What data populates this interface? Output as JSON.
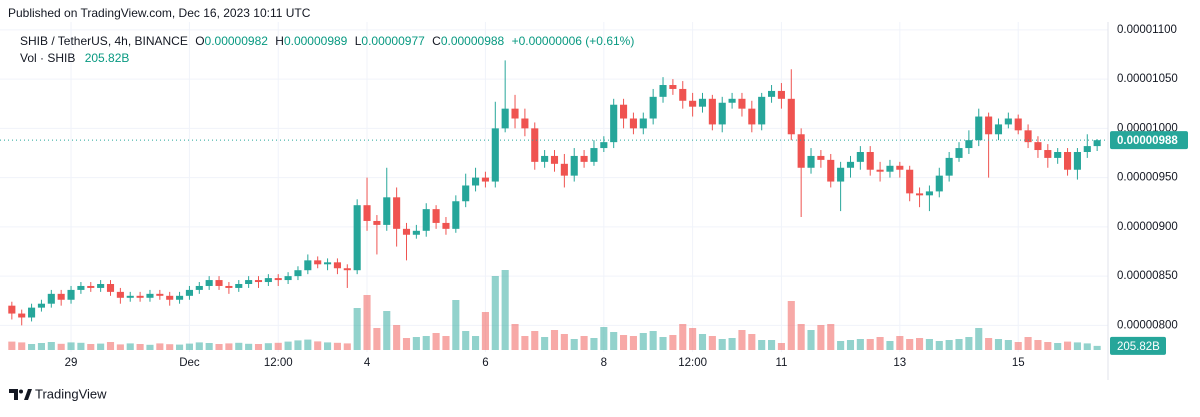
{
  "header": {
    "published": "Published on TradingView.com, Dec 16, 2023 10:11 UTC"
  },
  "chart_data": {
    "type": "candlestick",
    "legend": {
      "symbol": "SHIB / TetherUS, 4h, BINANCE",
      "open": {
        "label": "O",
        "value": "0.00000982"
      },
      "high": {
        "label": "H",
        "value": "0.00000989"
      },
      "low": {
        "label": "L",
        "value": "0.00000977"
      },
      "close": {
        "label": "C",
        "value": "0.00000988"
      },
      "change": "+0.00000006 (+0.61%)",
      "volume_title": "Vol · SHIB",
      "volume_value": "205.82B"
    },
    "open": [
      8.2e-06,
      8.12e-06,
      8.08e-06,
      8.18e-06,
      8.22e-06,
      8.32e-06,
      8.26e-06,
      8.36e-06,
      8.4e-06,
      8.38e-06,
      8.42e-06,
      8.34e-06,
      8.28e-06,
      8.3e-06,
      8.28e-06,
      8.32e-06,
      8.3e-06,
      8.26e-06,
      8.3e-06,
      8.36e-06,
      8.4e-06,
      8.46e-06,
      8.4e-06,
      8.38e-06,
      8.42e-06,
      8.46e-06,
      8.44e-06,
      8.48e-06,
      8.46e-06,
      8.5e-06,
      8.56e-06,
      8.66e-06,
      8.62e-06,
      8.64e-06,
      8.58e-06,
      8.56e-06,
      9.22e-06,
      9.06e-06,
      9.02e-06,
      9.3e-06,
      8.98e-06,
      8.92e-06,
      8.96e-06,
      9.18e-06,
      9.04e-06,
      8.98e-06,
      9.26e-06,
      9.42e-06,
      9.5e-06,
      9.46e-06,
      1e-05,
      1.02e-05,
      1.01e-05,
      1e-05,
      9.66e-06,
      9.72e-06,
      9.64e-06,
      9.52e-06,
      9.72e-06,
      9.66e-06,
      9.8e-06,
      9.86e-06,
      1.024e-05,
      1.01e-05,
      1e-05,
      1.01e-05,
      1.032e-05,
      1.044e-05,
      1.04e-05,
      1.028e-05,
      1.022e-05,
      1.03e-05,
      1.004e-05,
      1.026e-05,
      1.03e-05,
      1.02e-05,
      1.004e-05,
      1.032e-05,
      1.038e-05,
      1.03e-05,
      9.94e-06,
      9.6e-06,
      9.72e-06,
      9.68e-06,
      9.46e-06,
      9.6e-06,
      9.66e-06,
      9.76e-06,
      9.58e-06,
      9.56e-06,
      9.62e-06,
      9.58e-06,
      9.34e-06,
      9.32e-06,
      9.36e-06,
      9.52e-06,
      9.7e-06,
      9.8e-06,
      9.88e-06,
      1.012e-05,
      9.94e-06,
      1.004e-05,
      1.01e-05,
      9.98e-06,
      9.86e-06,
      9.78e-06,
      9.7e-06,
      9.76e-06,
      9.58e-06,
      9.76e-06,
      9.82e-06
    ],
    "high": [
      8.24e-06,
      8.16e-06,
      8.22e-06,
      8.26e-06,
      8.36e-06,
      8.36e-06,
      8.4e-06,
      8.44e-06,
      8.44e-06,
      8.46e-06,
      8.46e-06,
      8.38e-06,
      8.34e-06,
      8.34e-06,
      8.36e-06,
      8.36e-06,
      8.34e-06,
      8.34e-06,
      8.4e-06,
      8.44e-06,
      8.5e-06,
      8.5e-06,
      8.44e-06,
      8.46e-06,
      8.5e-06,
      8.5e-06,
      8.52e-06,
      8.52e-06,
      8.54e-06,
      8.6e-06,
      8.72e-06,
      8.7e-06,
      8.68e-06,
      8.68e-06,
      8.62e-06,
      9.28e-06,
      9.5e-06,
      9.12e-06,
      9.6e-06,
      9.4e-06,
      9.04e-06,
      9.02e-06,
      9.24e-06,
      9.22e-06,
      9.1e-06,
      9.32e-06,
      9.54e-06,
      9.6e-06,
      9.56e-06,
      1.027e-05,
      1.069e-05,
      1.034e-05,
      1.02e-05,
      1.006e-05,
      9.78e-06,
      9.78e-06,
      9.74e-06,
      9.8e-06,
      9.78e-06,
      9.88e-06,
      9.92e-06,
      1.03e-05,
      1.03e-05,
      1.016e-05,
      1.016e-05,
      1.04e-05,
      1.052e-05,
      1.05e-05,
      1.048e-05,
      1.036e-05,
      1.036e-05,
      1.034e-05,
      1.032e-05,
      1.036e-05,
      1.036e-05,
      1.028e-05,
      1.036e-05,
      1.044e-05,
      1.046e-05,
      1.06e-05,
      1e-05,
      9.8e-06,
      9.78e-06,
      9.74e-06,
      9.66e-06,
      9.72e-06,
      9.82e-06,
      9.82e-06,
      9.66e-06,
      9.68e-06,
      9.66e-06,
      9.62e-06,
      9.4e-06,
      9.42e-06,
      9.6e-06,
      9.76e-06,
      9.86e-06,
      9.98e-06,
      1.02e-05,
      1.016e-05,
      1.01e-05,
      1.016e-05,
      1.014e-05,
      1.004e-05,
      9.92e-06,
      9.84e-06,
      9.8e-06,
      9.8e-06,
      9.8e-06,
      9.94e-06,
      9.89e-06
    ],
    "low": [
      8.06e-06,
      8e-06,
      8.04e-06,
      8.14e-06,
      8.18e-06,
      8.2e-06,
      8.22e-06,
      8.32e-06,
      8.34e-06,
      8.34e-06,
      8.3e-06,
      8.22e-06,
      8.24e-06,
      8.24e-06,
      8.24e-06,
      8.26e-06,
      8.2e-06,
      8.22e-06,
      8.26e-06,
      8.32e-06,
      8.36e-06,
      8.36e-06,
      8.32e-06,
      8.34e-06,
      8.38e-06,
      8.38e-06,
      8.4e-06,
      8.4e-06,
      8.42e-06,
      8.46e-06,
      8.52e-06,
      8.58e-06,
      8.56e-06,
      8.52e-06,
      8.38e-06,
      8.52e-06,
      8.96e-06,
      8.72e-06,
      8.96e-06,
      8.8e-06,
      8.66e-06,
      8.88e-06,
      8.9e-06,
      8.98e-06,
      8.92e-06,
      8.94e-06,
      9.2e-06,
      9.36e-06,
      9.4e-06,
      9.4e-06,
      9.96e-06,
      1e-05,
      9.92e-06,
      9.58e-06,
      9.6e-06,
      9.56e-06,
      9.4e-06,
      9.46e-06,
      9.6e-06,
      9.62e-06,
      9.76e-06,
      9.8e-06,
      1e-05,
      9.94e-06,
      9.94e-06,
      1.004e-05,
      1.026e-05,
      1.034e-05,
      1.02e-05,
      1.012e-05,
      1.016e-05,
      9.98e-06,
      9.96e-06,
      1.02e-05,
      1.012e-05,
      9.96e-06,
      9.98e-06,
      1.026e-05,
      1.02e-05,
      9.88e-06,
      9.1e-06,
      9.54e-06,
      9.6e-06,
      9.4e-06,
      9.16e-06,
      9.5e-06,
      9.58e-06,
      9.52e-06,
      9.46e-06,
      9.5e-06,
      9.5e-06,
      9.26e-06,
      9.2e-06,
      9.16e-06,
      9.3e-06,
      9.46e-06,
      9.66e-06,
      9.74e-06,
      9.82e-06,
      9.5e-06,
      9.88e-06,
      1e-05,
      9.94e-06,
      9.8e-06,
      9.7e-06,
      9.6e-06,
      9.64e-06,
      9.52e-06,
      9.48e-06,
      9.7e-06,
      9.77e-06
    ],
    "close": [
      8.12e-06,
      8.08e-06,
      8.18e-06,
      8.22e-06,
      8.32e-06,
      8.26e-06,
      8.36e-06,
      8.4e-06,
      8.38e-06,
      8.42e-06,
      8.34e-06,
      8.28e-06,
      8.3e-06,
      8.28e-06,
      8.32e-06,
      8.3e-06,
      8.26e-06,
      8.3e-06,
      8.36e-06,
      8.4e-06,
      8.46e-06,
      8.4e-06,
      8.38e-06,
      8.42e-06,
      8.46e-06,
      8.44e-06,
      8.48e-06,
      8.46e-06,
      8.5e-06,
      8.56e-06,
      8.66e-06,
      8.62e-06,
      8.64e-06,
      8.58e-06,
      8.56e-06,
      9.22e-06,
      9.06e-06,
      9.02e-06,
      9.3e-06,
      8.98e-06,
      8.92e-06,
      8.96e-06,
      9.18e-06,
      9.04e-06,
      8.98e-06,
      9.26e-06,
      9.42e-06,
      9.5e-06,
      9.46e-06,
      1e-05,
      1.02e-05,
      1.01e-05,
      1e-05,
      9.66e-06,
      9.72e-06,
      9.64e-06,
      9.52e-06,
      9.72e-06,
      9.66e-06,
      9.8e-06,
      9.86e-06,
      1.024e-05,
      1.01e-05,
      1e-05,
      1.01e-05,
      1.032e-05,
      1.044e-05,
      1.04e-05,
      1.028e-05,
      1.022e-05,
      1.03e-05,
      1.004e-05,
      1.026e-05,
      1.03e-05,
      1.02e-05,
      1.004e-05,
      1.032e-05,
      1.038e-05,
      1.03e-05,
      9.94e-06,
      9.6e-06,
      9.72e-06,
      9.68e-06,
      9.46e-06,
      9.6e-06,
      9.66e-06,
      9.76e-06,
      9.58e-06,
      9.56e-06,
      9.62e-06,
      9.58e-06,
      9.34e-06,
      9.32e-06,
      9.36e-06,
      9.52e-06,
      9.7e-06,
      9.8e-06,
      9.88e-06,
      1.012e-05,
      9.94e-06,
      1.004e-05,
      1.01e-05,
      9.98e-06,
      9.86e-06,
      9.78e-06,
      9.7e-06,
      9.76e-06,
      9.58e-06,
      9.76e-06,
      9.82e-06,
      9.88e-06
    ],
    "volume": [
      420,
      380,
      300,
      350,
      400,
      310,
      380,
      360,
      300,
      320,
      400,
      280,
      330,
      300,
      260,
      330,
      290,
      270,
      320,
      380,
      350,
      300,
      330,
      360,
      310,
      300,
      340,
      360,
      420,
      480,
      520,
      430,
      380,
      360,
      330,
      2100,
      2750,
      1100,
      1950,
      1250,
      600,
      650,
      700,
      850,
      700,
      2500,
      950,
      700,
      1900,
      3700,
      4000,
      1300,
      700,
      950,
      650,
      1000,
      800,
      550,
      700,
      600,
      1150,
      900,
      750,
      700,
      850,
      950,
      650,
      750,
      1300,
      1100,
      800,
      700,
      550,
      600,
      1000,
      800,
      500,
      500,
      350,
      2450,
      1300,
      1000,
      1250,
      1300,
      450,
      500,
      550,
      550,
      650,
      450,
      700,
      550,
      600,
      550,
      450,
      500,
      550,
      650,
      1100,
      600,
      550,
      500,
      400,
      650,
      500,
      400,
      350,
      420,
      380,
      330,
      205.82
    ],
    "colors": {
      "up": "#26a69a",
      "down": "#ef5350"
    },
    "xlim": [
      -1.2,
      111.1
    ],
    "xticks": [
      {
        "value": 6,
        "label": "29"
      },
      {
        "value": 18,
        "label": "Dec"
      },
      {
        "value": 27,
        "label": "12:00"
      },
      {
        "value": 36,
        "label": "4"
      },
      {
        "value": 48,
        "label": "6"
      },
      {
        "value": 60,
        "label": "8"
      },
      {
        "value": 69,
        "label": "12:00"
      },
      {
        "value": 78,
        "label": "11"
      },
      {
        "value": 90,
        "label": "13"
      },
      {
        "value": 102,
        "label": "15"
      }
    ],
    "ylim": [
      7.75e-06,
      1.11e-05
    ],
    "yticks": [
      {
        "value": 8e-06,
        "label": "0.00000800"
      },
      {
        "value": 8.5e-06,
        "label": "0.00000850"
      },
      {
        "value": 9e-06,
        "label": "0.00000900"
      },
      {
        "value": 9.5e-06,
        "label": "0.00000950"
      },
      {
        "value": 1e-05,
        "label": "0.00001000"
      },
      {
        "value": 1.05e-05,
        "label": "0.00001050"
      },
      {
        "value": 1.1e-05,
        "label": "0.00001100"
      }
    ],
    "last_price": {
      "value": 9.88e-06,
      "label": "0.00000988"
    },
    "last_volume": {
      "value": 205.82,
      "label": "205.82B"
    },
    "grid": true
  },
  "footer": {
    "brand": "TradingView"
  }
}
